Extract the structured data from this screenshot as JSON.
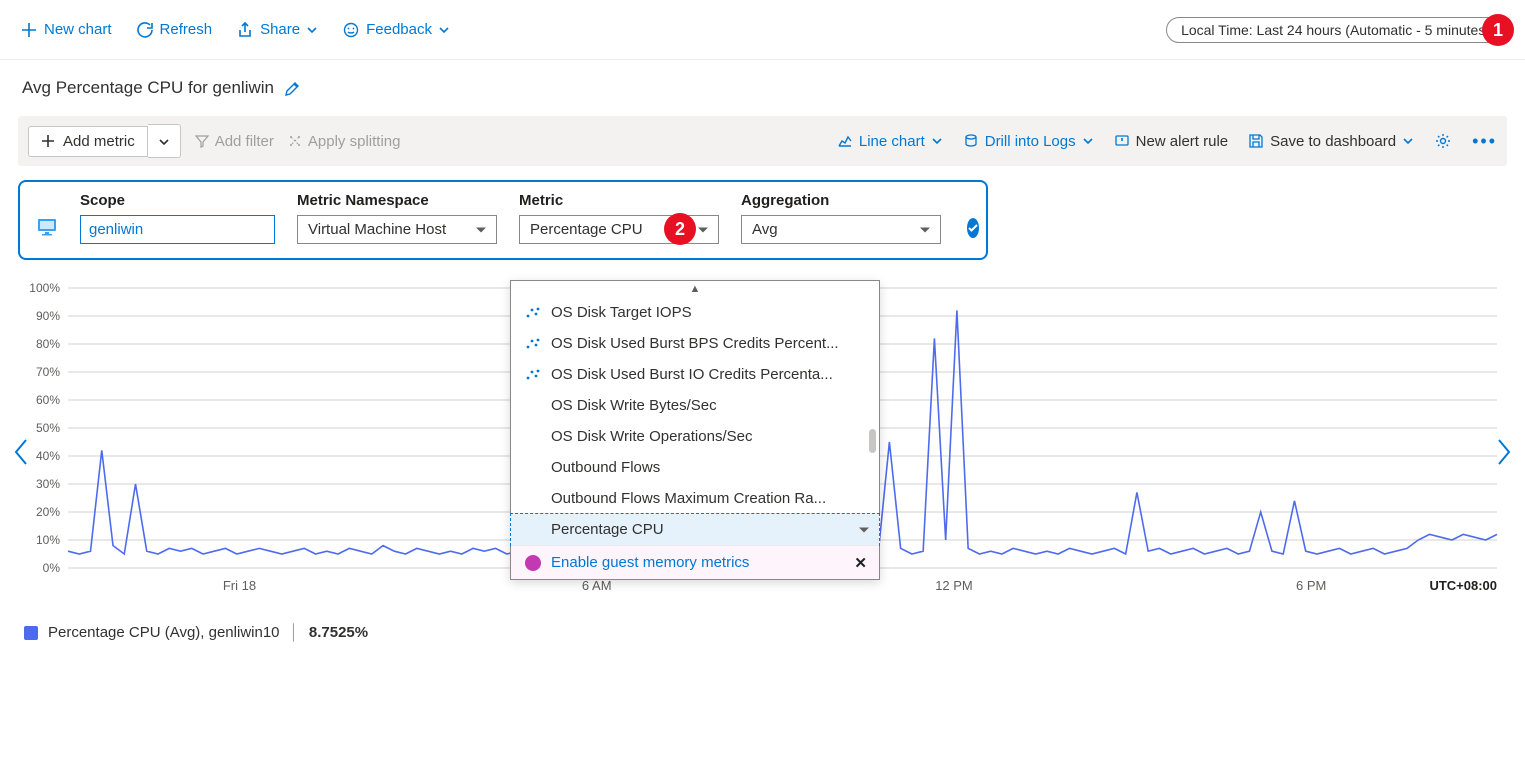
{
  "commandBar": {
    "newChart": "New chart",
    "refresh": "Refresh",
    "share": "Share",
    "feedback": "Feedback",
    "timeRange": "Local Time: Last 24 hours (Automatic - 5 minutes)"
  },
  "title": "Avg Percentage CPU for genliwin",
  "toolbar": {
    "addMetric": "Add metric",
    "addFilter": "Add filter",
    "applySplitting": "Apply splitting",
    "lineChart": "Line chart",
    "drillLogs": "Drill into Logs",
    "newAlert": "New alert rule",
    "saveDashboard": "Save to dashboard"
  },
  "selector": {
    "scopeLabel": "Scope",
    "scopeValue": "genliwin",
    "namespaceLabel": "Metric Namespace",
    "namespaceValue": "Virtual Machine Host",
    "metricLabel": "Metric",
    "metricValue": "Percentage CPU",
    "aggregationLabel": "Aggregation",
    "aggregationValue": "Avg"
  },
  "metricDropdown": {
    "options": [
      {
        "label": "OS Disk Target IOPS",
        "icon": true
      },
      {
        "label": "OS Disk Used Burst BPS Credits Percent...",
        "icon": true
      },
      {
        "label": "OS Disk Used Burst IO Credits Percenta...",
        "icon": true
      },
      {
        "label": "OS Disk Write Bytes/Sec",
        "icon": false
      },
      {
        "label": "OS Disk Write Operations/Sec",
        "icon": false
      },
      {
        "label": "Outbound Flows",
        "icon": false
      },
      {
        "label": "Outbound Flows Maximum Creation Ra...",
        "icon": false
      },
      {
        "label": "Percentage CPU",
        "icon": false,
        "selected": true
      }
    ],
    "enableGuest": "Enable guest memory metrics"
  },
  "callouts": {
    "one": "1",
    "two": "2"
  },
  "chart": {
    "colors": {
      "line": "#4f6bed",
      "grid": "#d2d0ce",
      "axisText": "#605e5c",
      "bg": "#ffffff"
    },
    "y": {
      "min": 0,
      "max": 100,
      "ticks": [
        0,
        10,
        20,
        30,
        40,
        50,
        60,
        70,
        80,
        90,
        100
      ],
      "tickLabels": [
        "0%",
        "10%",
        "20%",
        "30%",
        "40%",
        "50%",
        "60%",
        "70%",
        "80%",
        "90%",
        "100%"
      ]
    },
    "x": {
      "ticks": [
        "Fri 18",
        "6 AM",
        "12 PM",
        "6 PM"
      ],
      "tz": "UTC+08:00"
    },
    "series": [
      6,
      5,
      6,
      42,
      8,
      5,
      30,
      6,
      5,
      7,
      6,
      7,
      5,
      6,
      7,
      5,
      6,
      7,
      6,
      5,
      6,
      7,
      5,
      6,
      5,
      7,
      6,
      5,
      8,
      6,
      5,
      7,
      6,
      5,
      6,
      5,
      7,
      6,
      7,
      5,
      6,
      25,
      7,
      5,
      6,
      7,
      5,
      7,
      6,
      7,
      5,
      6,
      7,
      5,
      6,
      5,
      7,
      6,
      5,
      6,
      7,
      20,
      6,
      7,
      6,
      7,
      5,
      6,
      7,
      5,
      40,
      6,
      5,
      45,
      7,
      5,
      6,
      82,
      10,
      92,
      7,
      5,
      6,
      5,
      7,
      6,
      5,
      6,
      5,
      7,
      6,
      5,
      6,
      7,
      5,
      27,
      6,
      7,
      5,
      6,
      7,
      5,
      6,
      7,
      5,
      6,
      20,
      6,
      5,
      24,
      6,
      5,
      6,
      7,
      5,
      6,
      7,
      5,
      6,
      7,
      10,
      12,
      11,
      10,
      12,
      11,
      10,
      12
    ]
  },
  "legend": {
    "label": "Percentage CPU (Avg), genliwin10",
    "value": "8.7525%",
    "swatchColor": "#4f6bed"
  }
}
